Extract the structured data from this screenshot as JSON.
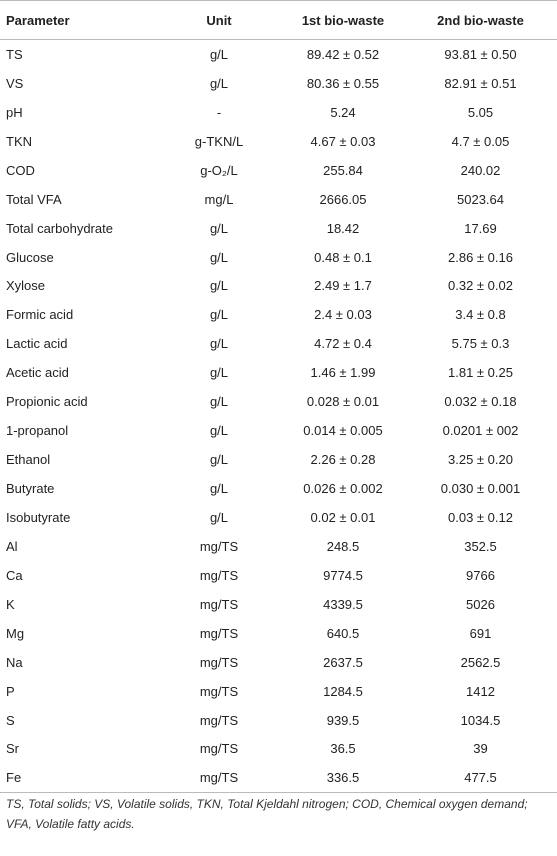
{
  "table": {
    "header": [
      "Parameter",
      "Unit",
      "1st bio-waste",
      "2nd bio-waste"
    ],
    "rows": [
      [
        "TS",
        "g/L",
        "89.42 ± 0.52",
        "93.81 ± 0.50"
      ],
      [
        "VS",
        "g/L",
        "80.36 ± 0.55",
        "82.91 ± 0.51"
      ],
      [
        "pH",
        "-",
        "5.24",
        "5.05"
      ],
      [
        "TKN",
        "g-TKN/L",
        "4.67 ± 0.03",
        "4.7 ± 0.05"
      ],
      [
        "COD",
        "g-O₂/L",
        "255.84",
        "240.02"
      ],
      [
        "Total VFA",
        "mg/L",
        "2666.05",
        "5023.64"
      ],
      [
        "Total carbohydrate",
        "g/L",
        "18.42",
        "17.69"
      ],
      [
        "Glucose",
        "g/L",
        "0.48 ± 0.1",
        "2.86 ± 0.16"
      ],
      [
        "Xylose",
        "g/L",
        "2.49 ± 1.7",
        "0.32 ± 0.02"
      ],
      [
        "Formic acid",
        "g/L",
        "2.4 ± 0.03",
        "3.4 ± 0.8"
      ],
      [
        "Lactic acid",
        "g/L",
        "4.72 ± 0.4",
        "5.75 ± 0.3"
      ],
      [
        "Acetic acid",
        "g/L",
        "1.46 ± 1.99",
        "1.81 ± 0.25"
      ],
      [
        "Propionic acid",
        "g/L",
        "0.028 ± 0.01",
        "0.032 ± 0.18"
      ],
      [
        "1-propanol",
        "g/L",
        "0.014 ± 0.005",
        "0.0201 ± 002"
      ],
      [
        "Ethanol",
        "g/L",
        "2.26 ± 0.28",
        "3.25 ± 0.20"
      ],
      [
        "Butyrate",
        "g/L",
        "0.026 ± 0.002",
        "0.030 ± 0.001"
      ],
      [
        "Isobutyrate",
        "g/L",
        "0.02 ± 0.01",
        "0.03 ± 0.12"
      ],
      [
        "Al",
        "mg/TS",
        "248.5",
        "352.5"
      ],
      [
        "Ca",
        "mg/TS",
        "9774.5",
        "9766"
      ],
      [
        "K",
        "mg/TS",
        "4339.5",
        "5026"
      ],
      [
        "Mg",
        "mg/TS",
        "640.5",
        "691"
      ],
      [
        "Na",
        "mg/TS",
        "2637.5",
        "2562.5"
      ],
      [
        "P",
        "mg/TS",
        "1284.5",
        "1412"
      ],
      [
        "S",
        "mg/TS",
        "939.5",
        "1034.5"
      ],
      [
        "Sr",
        "mg/TS",
        "36.5",
        "39"
      ],
      [
        "Fe",
        "mg/TS",
        "336.5",
        "477.5"
      ]
    ],
    "footnote": "TS, Total solids; VS, Volatile solids, TKN, Total Kjeldahl nitrogen; COD, Chemical oxygen demand; VFA, Volatile fatty acids."
  }
}
